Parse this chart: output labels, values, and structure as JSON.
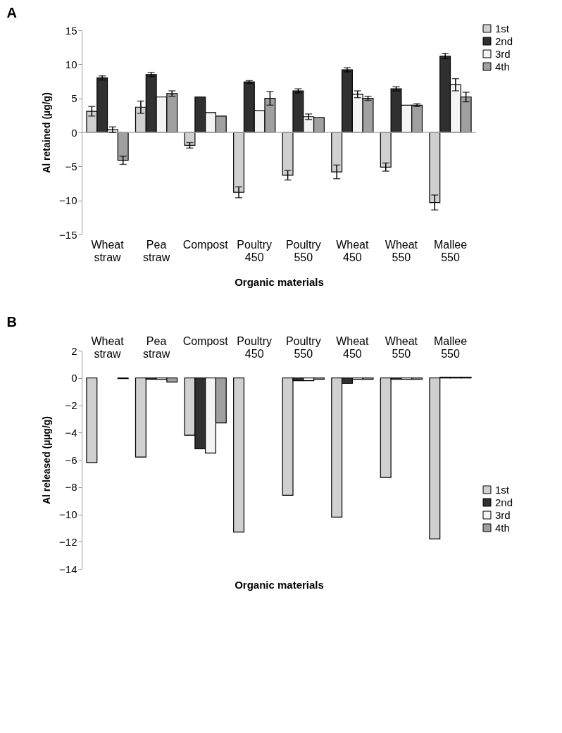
{
  "chart_data": [
    {
      "type": "bar",
      "title": "A",
      "xlabel": "Organic materials",
      "ylabel": "Al  retained (µg/g)",
      "categories": [
        "Wheat straw",
        "Pea straw",
        "Compost",
        "Poultry 450",
        "Poultry 550",
        "Wheat 450",
        "Wheat 550",
        "Mallee 550"
      ],
      "series": [
        {
          "name": "1st",
          "color": "#d0d0d0",
          "values": [
            3.1,
            3.7,
            -1.9,
            -8.8,
            -6.3,
            -5.8,
            -5.1,
            -10.3
          ],
          "errors": [
            0.7,
            0.9,
            0.4,
            0.8,
            0.7,
            1.0,
            0.6,
            1.1
          ]
        },
        {
          "name": "2nd",
          "color": "#303030",
          "values": [
            8.0,
            8.5,
            5.2,
            7.4,
            6.1,
            9.2,
            6.4,
            11.2
          ],
          "errors": [
            0.3,
            0.3,
            null,
            0.2,
            0.3,
            0.3,
            0.3,
            0.4
          ]
        },
        {
          "name": "3rd",
          "color": "#f4f4f4",
          "values": [
            0.4,
            5.2,
            2.9,
            3.2,
            2.3,
            5.6,
            4.0,
            7.0
          ],
          "errors": [
            0.4,
            null,
            null,
            null,
            0.4,
            0.5,
            null,
            0.9
          ]
        },
        {
          "name": "4th",
          "color": "#a0a0a0",
          "values": [
            -4.1,
            5.7,
            2.4,
            5.0,
            2.2,
            5.0,
            4.0,
            5.2
          ],
          "errors": [
            0.6,
            0.4,
            null,
            1.0,
            null,
            0.3,
            0.2,
            0.7
          ]
        }
      ],
      "ylim": [
        -15,
        15
      ],
      "yticks": [
        -15,
        -10,
        -5,
        0,
        5,
        10,
        15
      ],
      "legend": "top right",
      "ref_lines": [
        {
          "axis": "y",
          "value": 0,
          "color": "#b0b0b0"
        }
      ]
    },
    {
      "type": "bar",
      "title": "B",
      "xlabel": "Organic materials",
      "ylabel": "Al released (µµg/g)",
      "categories": [
        "Wheat straw",
        "Pea straw",
        "Compost",
        "Poultry 450",
        "Poultry 550",
        "Wheat 450",
        "Wheat 550",
        "Mallee 550"
      ],
      "series": [
        {
          "name": "1st",
          "color": "#d0d0d0",
          "values": [
            -6.2,
            -5.8,
            -4.2,
            -11.3,
            -8.6,
            -10.2,
            -7.3,
            -11.8
          ]
        },
        {
          "name": "2nd",
          "color": "#303030",
          "values": [
            null,
            -0.1,
            -5.2,
            null,
            -0.2,
            -0.4,
            -0.1,
            0.05
          ]
        },
        {
          "name": "3rd",
          "color": "#f4f4f4",
          "values": [
            null,
            -0.1,
            -5.5,
            null,
            -0.2,
            -0.1,
            -0.1,
            0.05
          ]
        },
        {
          "name": "4th",
          "color": "#a0a0a0",
          "values": [
            -0.05,
            -0.3,
            -3.3,
            null,
            -0.1,
            -0.1,
            -0.1,
            0.05
          ]
        }
      ],
      "ylim": [
        -14,
        2
      ],
      "yticks": [
        -14,
        -12,
        -10,
        -8,
        -6,
        -4,
        -2,
        0,
        2
      ],
      "legend": "bottom right"
    }
  ]
}
